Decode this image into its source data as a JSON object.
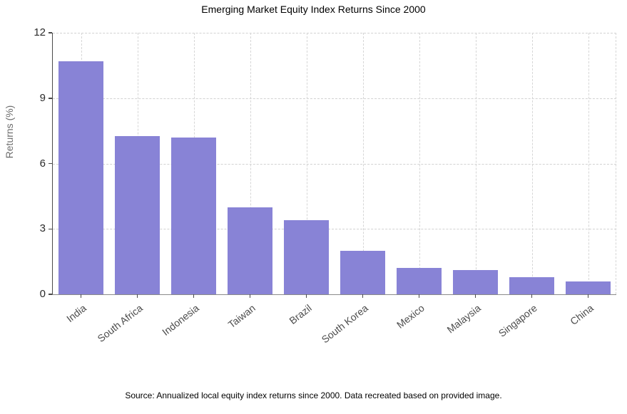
{
  "chart_data": {
    "type": "bar",
    "title": "Emerging Market Equity Index Returns Since 2000",
    "xlabel": "",
    "ylabel": "Returns (%)",
    "categories": [
      "India",
      "South Africa",
      "Indonesia",
      "Taiwan",
      "Brazil",
      "South Korea",
      "Mexico",
      "Malaysia",
      "Singapore",
      "China"
    ],
    "values": [
      10.7,
      7.25,
      7.2,
      4.0,
      3.4,
      2.0,
      1.2,
      1.1,
      0.8,
      0.6
    ],
    "ylim": [
      0,
      12
    ],
    "yticks": [
      0,
      3,
      6,
      9,
      12
    ],
    "grid": "dashed horizontal and vertical gridlines",
    "legend_position": "none",
    "source_note": "Source: Annualized local equity index returns since 2000. Data recreated based on provided image."
  },
  "colors": {
    "bar_fill": "#8883d6",
    "gridline": "#d4d4d4",
    "spine": "#4a4a4a",
    "ytick_label": "#2b2b2b",
    "xtick_label": "#4d4d4d",
    "axis_label": "#6e6e6e",
    "title": "#000000",
    "background": "#ffffff"
  }
}
